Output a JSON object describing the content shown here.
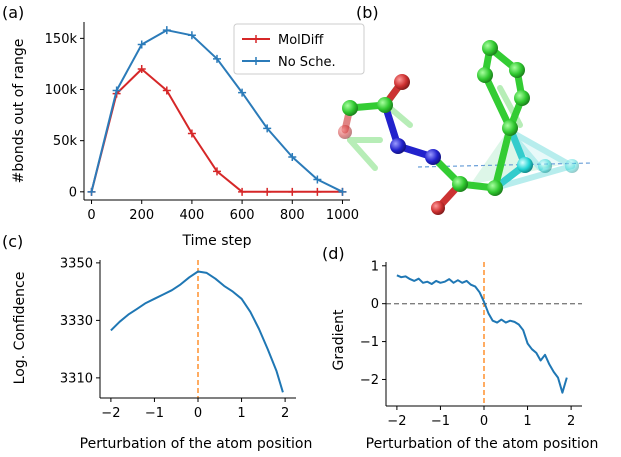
{
  "figure": {
    "panel_labels": [
      "(a)",
      "(b)",
      "(c)",
      "(d)"
    ]
  },
  "colors": {
    "moldiff": "#d62728",
    "nosche": "#2b7bb9",
    "line_cd": "#1f77b4",
    "orange_dashed": "#ff7f0e",
    "gray_dashed": "#7f7f7f",
    "atom_green": "#33cc33",
    "atom_blue": "#2222cc",
    "atom_red": "#cc3333",
    "atom_cyan": "#33cccc"
  },
  "chart_data": [
    {
      "id": "a",
      "type": "line",
      "xlabel": "Time step",
      "ylabel": "#bonds out of range",
      "xlim": [
        -30,
        1030
      ],
      "ylim": [
        -8000,
        166000
      ],
      "xticks": [
        0,
        200,
        400,
        600,
        800,
        1000
      ],
      "xtick_labels": [
        "0",
        "200",
        "400",
        "600",
        "800",
        "1000"
      ],
      "yticks": [
        0,
        50000,
        100000,
        150000
      ],
      "ytick_labels": [
        "0",
        "50k",
        "100k",
        "150k"
      ],
      "legend_position": "top-right",
      "series": [
        {
          "name": "MolDiff",
          "color_key": "moldiff",
          "x": [
            0,
            100,
            200,
            300,
            400,
            500,
            600,
            700,
            800,
            900,
            1000
          ],
          "y": [
            0,
            96000,
            120000,
            99000,
            57000,
            20000,
            0,
            0,
            0,
            0,
            0
          ]
        },
        {
          "name": "No Sche.",
          "color_key": "nosche",
          "x": [
            0,
            100,
            200,
            300,
            400,
            500,
            600,
            700,
            800,
            900,
            1000
          ],
          "y": [
            0,
            99000,
            144000,
            158000,
            153000,
            130000,
            97000,
            62000,
            34000,
            12000,
            0
          ]
        }
      ]
    },
    {
      "id": "c",
      "type": "line",
      "xlabel": "Perturbation of the atom position",
      "ylabel": "Log. Confidence",
      "xlim": [
        -2.25,
        2.25
      ],
      "ylim": [
        3303,
        3351
      ],
      "xticks": [
        -2,
        -1,
        0,
        1,
        2
      ],
      "xtick_labels": [
        "−2",
        "−1",
        "0",
        "1",
        "2"
      ],
      "yticks": [
        3310,
        3330,
        3350
      ],
      "ytick_labels": [
        "3310",
        "3330",
        "3350"
      ],
      "vline_x": 0,
      "series": [
        {
          "color_key": "line_cd",
          "x": [
            -2.0,
            -1.8,
            -1.6,
            -1.4,
            -1.2,
            -1.0,
            -0.8,
            -0.6,
            -0.4,
            -0.2,
            0.0,
            0.2,
            0.4,
            0.6,
            0.8,
            1.0,
            1.2,
            1.4,
            1.6,
            1.8,
            1.95
          ],
          "y": [
            3326.5,
            3329.5,
            3332.0,
            3334.0,
            3336.0,
            3337.5,
            3339.0,
            3340.5,
            3342.5,
            3345.0,
            3347.0,
            3346.5,
            3344.5,
            3342.0,
            3340.0,
            3337.5,
            3333.0,
            3327.0,
            3320.0,
            3312.5,
            3305.0
          ]
        }
      ]
    },
    {
      "id": "d",
      "type": "line",
      "xlabel": "Perturbation of the atom position",
      "ylabel": "Gradient",
      "xlim": [
        -2.25,
        2.25
      ],
      "ylim": [
        -2.7,
        1.1
      ],
      "xticks": [
        -2,
        -1,
        0,
        1,
        2
      ],
      "xtick_labels": [
        "−2",
        "−1",
        "0",
        "1",
        "2"
      ],
      "yticks": [
        1,
        0,
        -1,
        -2
      ],
      "ytick_labels": [
        "1",
        "0",
        "−1",
        "−2"
      ],
      "vline_x": 0,
      "hline_y": 0,
      "series": [
        {
          "color_key": "line_cd",
          "x": [
            -2.0,
            -1.9,
            -1.8,
            -1.7,
            -1.6,
            -1.5,
            -1.4,
            -1.3,
            -1.2,
            -1.1,
            -1.0,
            -0.9,
            -0.8,
            -0.7,
            -0.6,
            -0.5,
            -0.4,
            -0.3,
            -0.2,
            -0.1,
            0.0,
            0.1,
            0.2,
            0.3,
            0.4,
            0.5,
            0.6,
            0.7,
            0.8,
            0.9,
            1.0,
            1.1,
            1.2,
            1.3,
            1.4,
            1.5,
            1.6,
            1.7,
            1.8,
            1.9
          ],
          "y": [
            0.75,
            0.7,
            0.72,
            0.65,
            0.6,
            0.66,
            0.55,
            0.58,
            0.52,
            0.6,
            0.55,
            0.58,
            0.65,
            0.55,
            0.62,
            0.55,
            0.6,
            0.5,
            0.45,
            0.3,
            0.05,
            -0.25,
            -0.45,
            -0.5,
            -0.42,
            -0.5,
            -0.45,
            -0.48,
            -0.55,
            -0.7,
            -1.05,
            -1.2,
            -1.3,
            -1.5,
            -1.35,
            -1.6,
            -1.8,
            -1.95,
            -2.35,
            -1.95
          ]
        }
      ]
    }
  ]
}
